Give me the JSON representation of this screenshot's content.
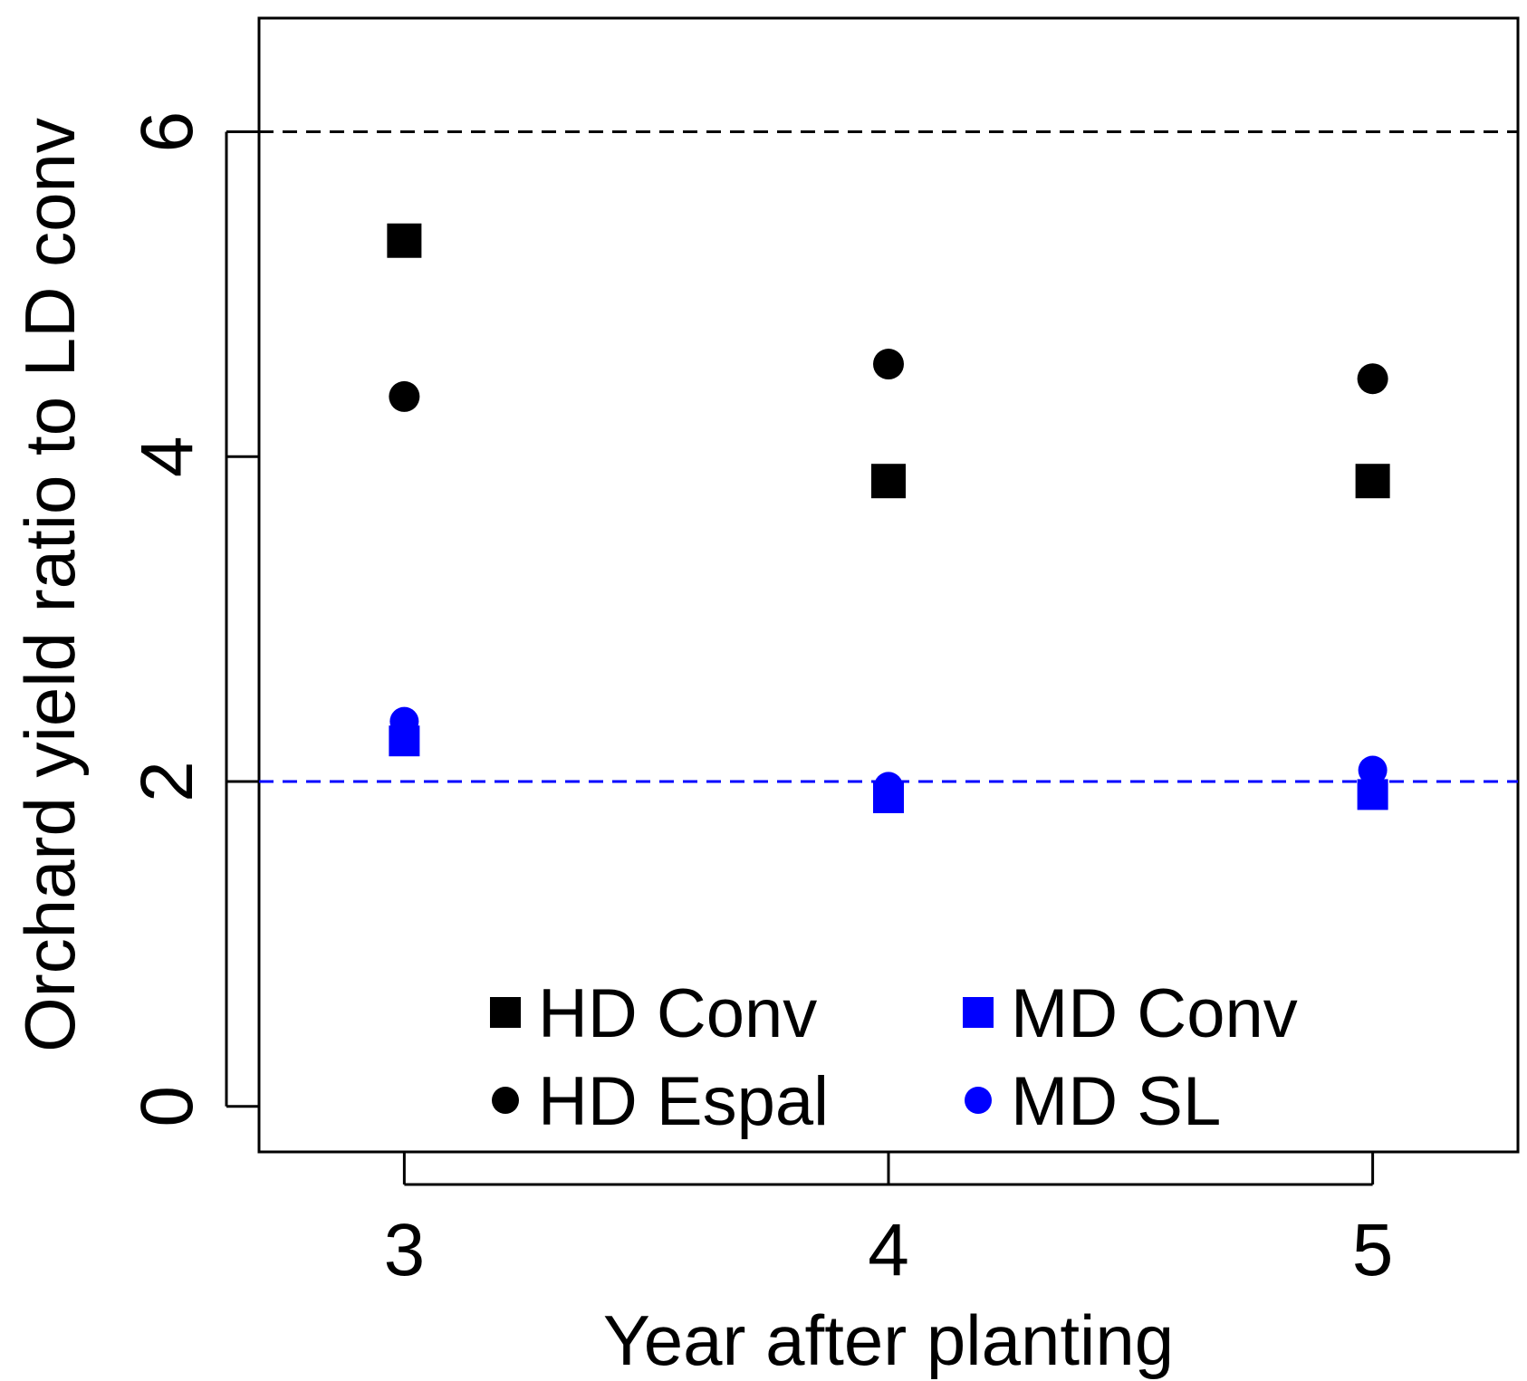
{
  "chart_data": {
    "type": "scatter",
    "xlabel": "Year after planting",
    "ylabel": "Orchard yield ratio to LD conv",
    "x_ticks": [
      3,
      4,
      5
    ],
    "y_ticks": [
      0,
      2,
      4,
      6
    ],
    "xlim": [
      2.7,
      5.3
    ],
    "ylim": [
      -0.28,
      6.7
    ],
    "grid": false,
    "legend_position": "bottom-center",
    "reference_lines": [
      {
        "y": 6,
        "style": "dashed",
        "color": "#000000"
      },
      {
        "y": 2,
        "style": "dashed",
        "color": "#0000ff"
      }
    ],
    "series": [
      {
        "name": "HD Conv",
        "marker": "square",
        "color": "#000000",
        "x": [
          3,
          4,
          5
        ],
        "y": [
          5.33,
          3.85,
          3.85
        ]
      },
      {
        "name": "HD Espal",
        "marker": "circle",
        "color": "#000000",
        "x": [
          3,
          4,
          5
        ],
        "y": [
          4.37,
          4.57,
          4.48
        ]
      },
      {
        "name": "MD Conv",
        "marker": "square",
        "color": "#0000ff",
        "x": [
          3,
          4,
          5
        ],
        "y": [
          2.25,
          1.9,
          1.92
        ]
      },
      {
        "name": "MD SL",
        "marker": "circle",
        "color": "#0000ff",
        "x": [
          3,
          4,
          5
        ],
        "y": [
          2.37,
          1.97,
          2.07
        ]
      }
    ]
  }
}
